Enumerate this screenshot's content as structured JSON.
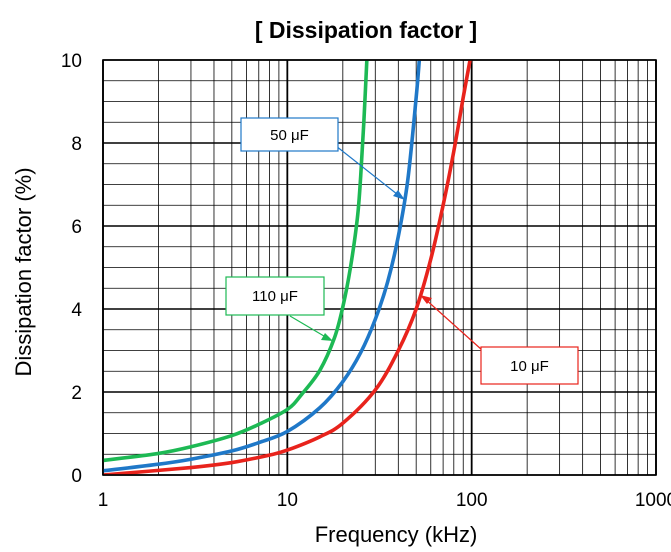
{
  "chart_data": {
    "type": "line",
    "title": "[ Dissipation factor ]",
    "xlabel": "Frequency (kHz)",
    "ylabel": "Dissipation factor  (%)",
    "x_scale": "log",
    "xlim": [
      1,
      1000
    ],
    "ylim": [
      0,
      10
    ],
    "x_ticks": [
      1,
      10,
      100,
      1000
    ],
    "x_tick_labels": [
      "1",
      "10",
      "100",
      "1000"
    ],
    "y_ticks": [
      0,
      2,
      4,
      6,
      8,
      10
    ],
    "y_tick_labels": [
      "0",
      "2",
      "4",
      "6",
      "8",
      "10"
    ],
    "grid": true,
    "series": [
      {
        "name": "110 μF",
        "color": "#1db954",
        "x": [
          1,
          2,
          3,
          5,
          7,
          10,
          12,
          15,
          18,
          20,
          22,
          24,
          25,
          26,
          27
        ],
        "y": [
          0.35,
          0.52,
          0.68,
          0.95,
          1.22,
          1.58,
          1.95,
          2.52,
          3.3,
          4.05,
          5.0,
          6.2,
          7.2,
          8.5,
          10.0
        ]
      },
      {
        "name": "50 μF",
        "color": "#1f78c8",
        "x": [
          1,
          2,
          3,
          5,
          7,
          10,
          15,
          20,
          25,
          30,
          35,
          40,
          45,
          50,
          52
        ],
        "y": [
          0.1,
          0.26,
          0.38,
          0.58,
          0.78,
          1.05,
          1.62,
          2.25,
          2.95,
          3.75,
          4.65,
          5.75,
          7.1,
          9.1,
          10.0
        ]
      },
      {
        "name": "10 μF",
        "color": "#e8231c",
        "x": [
          1,
          3,
          5,
          8,
          10,
          15,
          20,
          30,
          40,
          50,
          60,
          70,
          80,
          90,
          98
        ],
        "y": [
          0.0,
          0.18,
          0.3,
          0.48,
          0.6,
          0.92,
          1.25,
          2.05,
          3.0,
          4.0,
          5.2,
          6.5,
          7.8,
          9.1,
          10.0
        ]
      }
    ],
    "annotations": [
      {
        "text": "50 μF",
        "series": "50 μF",
        "points_to": {
          "x": 45,
          "y": 6.65
        }
      },
      {
        "text": "110 μF",
        "series": "110 μF",
        "points_to": {
          "x": 20,
          "y": 3.2
        }
      },
      {
        "text": "10 μF",
        "series": "10 μF",
        "points_to": {
          "x": 50.5,
          "y": 4.35
        }
      }
    ]
  }
}
